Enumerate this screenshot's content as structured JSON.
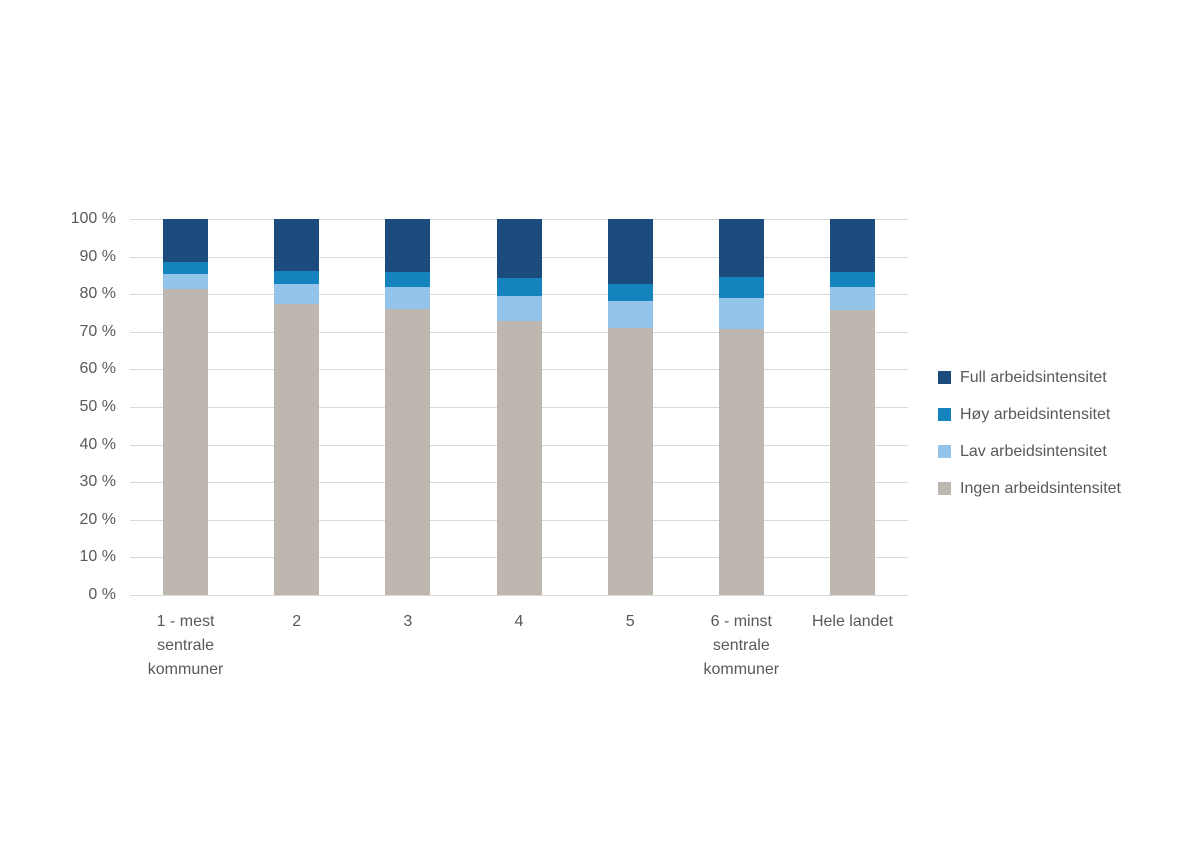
{
  "chart_data": {
    "type": "bar",
    "variant": "stacked-100-percent",
    "title": "",
    "xlabel": "",
    "ylabel": "",
    "ylim": [
      0,
      100
    ],
    "grid": true,
    "legend_position": "right",
    "categories": [
      "1 - mest sentrale kommuner",
      "2",
      "3",
      "4",
      "5",
      "6 - minst sentrale kommuner",
      "Hele landet"
    ],
    "series": [
      {
        "name": "Ingen arbeidsintensitet",
        "color": "#beb7af",
        "values": [
          81.3,
          77.5,
          76.0,
          73.0,
          71.0,
          70.7,
          75.8
        ]
      },
      {
        "name": "Lav arbeidsintensitet",
        "color": "#95c4ea",
        "values": [
          4.2,
          5.1,
          5.9,
          6.6,
          7.1,
          8.3,
          6.0
        ]
      },
      {
        "name": "Høy arbeidsintensitet",
        "color": "#1583be",
        "values": [
          3.0,
          3.7,
          4.1,
          4.7,
          4.7,
          5.6,
          4.0
        ]
      },
      {
        "name": "Full arbeidsintensitet",
        "color": "#1c4b7d",
        "values": [
          11.5,
          13.7,
          14.0,
          15.7,
          17.2,
          15.4,
          14.2
        ]
      }
    ],
    "legend_order": [
      "Full arbeidsintensitet",
      "Høy arbeidsintensitet",
      "Lav arbeidsintensitet",
      "Ingen arbeidsintensitet"
    ],
    "y_ticks": [
      "100 %",
      "90 %",
      "80 %",
      "70 %",
      "60 %",
      "50 %",
      "40 %",
      "30 %",
      "20 %",
      "10 %",
      "0 %"
    ]
  },
  "colors": {
    "background": "#ffffff",
    "gridline": "#d9d9d9",
    "axis_text": "#595959"
  }
}
